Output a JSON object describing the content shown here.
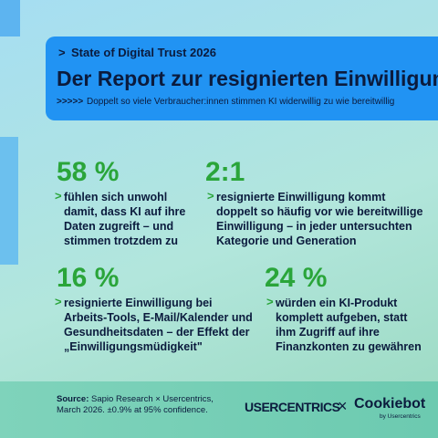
{
  "header": {
    "kicker": "State of Digital Trust 2026",
    "title": "Der Report zur resignierten Einwilligung",
    "subtitle": "Doppelt so viele Verbraucher:innen stimmen KI widerwillig zu wie bereitwillig"
  },
  "stats": [
    {
      "figure": "58 %",
      "lines": [
        "fühlen sich unwohl",
        "damit, dass KI auf ihre",
        "Daten zugreift – und",
        "stimmen trotzdem zu"
      ]
    },
    {
      "figure": "2:1",
      "lines": [
        "resignierte Einwilligung kommt",
        "doppelt so häufig vor wie bereitwillige",
        "Einwilligung – in jeder untersuchten",
        "Kategorie und Generation"
      ]
    },
    {
      "figure": "16 %",
      "lines": [
        "resignierte Einwilligung bei",
        "Arbeits-Tools, E-Mail/Kalender und",
        "Gesundheitsdaten – der Effekt der",
        "„Einwilligungsmüdigkeit\""
      ]
    },
    {
      "figure": "24 %",
      "lines": [
        "würden ein KI-Produkt",
        "komplett aufgeben, statt",
        "ihm Zugriff auf ihre",
        "Finanzkonten zu gewähren"
      ]
    }
  ],
  "footer": {
    "source_label": "Source:",
    "source_text": "Sapio Research × Usercentrics, March 2026. ±0.9% at 95% confidence.",
    "logo_left": "USERCENTRICS",
    "logo_sep": "×",
    "logo_right": "Cookiebot",
    "logo_right_sub": "by Usercentrics"
  }
}
